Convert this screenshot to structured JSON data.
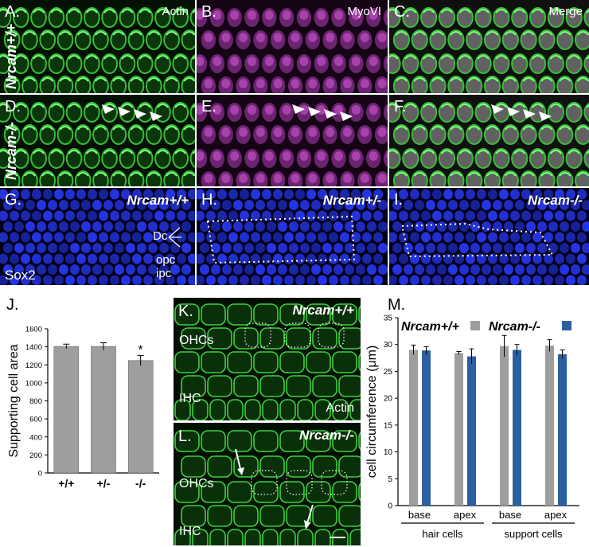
{
  "panels": {
    "a": {
      "letter": "A.",
      "caption": "Actin"
    },
    "b": {
      "letter": "B.",
      "caption": "MyoVI"
    },
    "c": {
      "letter": "C.",
      "caption": "Merge"
    },
    "d": {
      "letter": "D."
    },
    "e": {
      "letter": "E."
    },
    "f": {
      "letter": "F."
    },
    "g": {
      "letter": "G.",
      "genotype": "Nrcam+/+",
      "dc": "Dc",
      "opc": "opc",
      "ipc": "ipc",
      "stain": "Sox2"
    },
    "h": {
      "letter": "H.",
      "genotype": "Nrcam+/-"
    },
    "i": {
      "letter": "I.",
      "genotype": "Nrcam-/-"
    },
    "k": {
      "letter": "K.",
      "genotype": "Nrcam+/+",
      "ohc": "OHCs",
      "ihc": "IHC",
      "stain": "Actin"
    },
    "l": {
      "letter": "L.",
      "genotype": "Nrcam-/-",
      "ohc": "OHCs",
      "ihc": "IHC"
    }
  },
  "row_labels": {
    "top": "Nrcam+/+",
    "middle": "Nrcam-/-"
  },
  "colors": {
    "actin": "#3cd23c",
    "myo": "#c03ec8",
    "sox2": "#2a3cff",
    "wt_bar": "#9e9e9e",
    "ko_bar": "#2b5f9e"
  },
  "chart_data": [
    {
      "type": "bar",
      "panel_letter": "J.",
      "ylabel": "Supporting cell area",
      "categories": [
        "+/+",
        "+/-",
        "-/-"
      ],
      "values": [
        1405,
        1405,
        1248
      ],
      "errors": [
        25,
        40,
        55
      ],
      "annotation": "*",
      "ylim": [
        0,
        1600
      ],
      "yticks": [
        "0",
        "200",
        "400",
        "600",
        "800",
        "1000",
        "1200",
        "1400",
        "1600"
      ]
    },
    {
      "type": "bar",
      "panel_letter": "M.",
      "ylabel": "cell circumference (μm)",
      "groups": [
        "base",
        "apex",
        "base",
        "apex"
      ],
      "supergroups": [
        "hair cells",
        "support cells"
      ],
      "series": [
        {
          "name": "Nrcam+/+",
          "values": [
            29.0,
            28.4,
            29.7,
            29.8
          ],
          "errors": [
            0.9,
            0.3,
            2.0,
            1.1
          ]
        },
        {
          "name": "Nrcam-/-",
          "values": [
            28.9,
            27.8,
            29.0,
            28.2
          ],
          "errors": [
            0.7,
            1.4,
            1.0,
            0.8
          ]
        }
      ],
      "ylim": [
        0,
        35
      ],
      "yticks": [
        "0",
        "5",
        "10",
        "15",
        "20",
        "25",
        "30",
        "35"
      ]
    }
  ]
}
